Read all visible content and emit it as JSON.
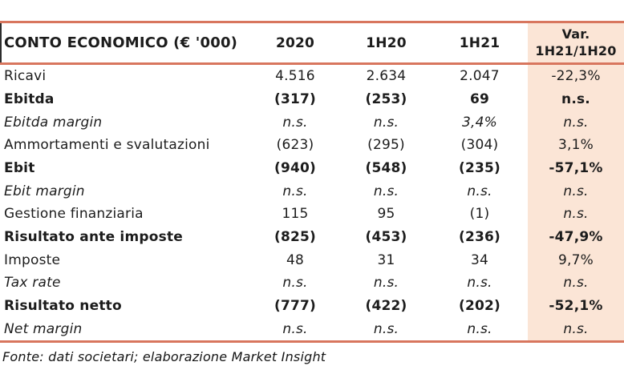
{
  "colors": {
    "accent_border": "#D8765E",
    "highlight_column_bg": "#FBE5D6",
    "text": "#1c1c1c"
  },
  "table": {
    "header": {
      "label": "CONTO ECONOMICO (€ '000)",
      "col_2020": "2020",
      "col_1h20": "1H20",
      "col_1h21": "1H21",
      "col_var_line1": "Var.",
      "col_var_line2": "1H21/1H20"
    },
    "rows": [
      {
        "label": "Ricavi",
        "v2020": "4.516",
        "v1h20": "2.634",
        "v1h21": "2.047",
        "var": "-22,3%",
        "emphasis": "none"
      },
      {
        "label": "Ebitda",
        "v2020": "(317)",
        "v1h20": "(253)",
        "v1h21": "69",
        "var": "n.s.",
        "emphasis": "bold"
      },
      {
        "label": "Ebitda margin",
        "v2020": "n.s.",
        "v1h20": "n.s.",
        "v1h21": "3,4%",
        "var": "n.s.",
        "emphasis": "italic"
      },
      {
        "label": "Ammortamenti e svalutazioni",
        "v2020": "(623)",
        "v1h20": "(295)",
        "v1h21": "(304)",
        "var": "3,1%",
        "emphasis": "none"
      },
      {
        "label": "Ebit",
        "v2020": "(940)",
        "v1h20": "(548)",
        "v1h21": "(235)",
        "var": "-57,1%",
        "emphasis": "bold"
      },
      {
        "label": "Ebit margin",
        "v2020": "n.s.",
        "v1h20": "n.s.",
        "v1h21": "n.s.",
        "var": "n.s.",
        "emphasis": "italic"
      },
      {
        "label": "Gestione finanziaria",
        "v2020": "115",
        "v1h20": "95",
        "v1h21": "(1)",
        "var": "n.s.",
        "emphasis": "none",
        "var_emphasis": "italic"
      },
      {
        "label": "Risultato ante imposte",
        "v2020": "(825)",
        "v1h20": "(453)",
        "v1h21": "(236)",
        "var": "-47,9%",
        "emphasis": "bold"
      },
      {
        "label": "Imposte",
        "v2020": "48",
        "v1h20": "31",
        "v1h21": "34",
        "var": "9,7%",
        "emphasis": "none"
      },
      {
        "label": "Tax rate",
        "v2020": "n.s.",
        "v1h20": "n.s.",
        "v1h21": "n.s.",
        "var": "n.s.",
        "emphasis": "italic"
      },
      {
        "label": "Risultato netto",
        "v2020": "(777)",
        "v1h20": "(422)",
        "v1h21": "(202)",
        "var": "-52,1%",
        "emphasis": "bold"
      },
      {
        "label": "Net margin",
        "v2020": "n.s.",
        "v1h20": "n.s.",
        "v1h21": "n.s.",
        "var": "n.s.",
        "emphasis": "italic"
      }
    ],
    "footer_note": "Fonte: dati societari; elaborazione Market Insight"
  }
}
